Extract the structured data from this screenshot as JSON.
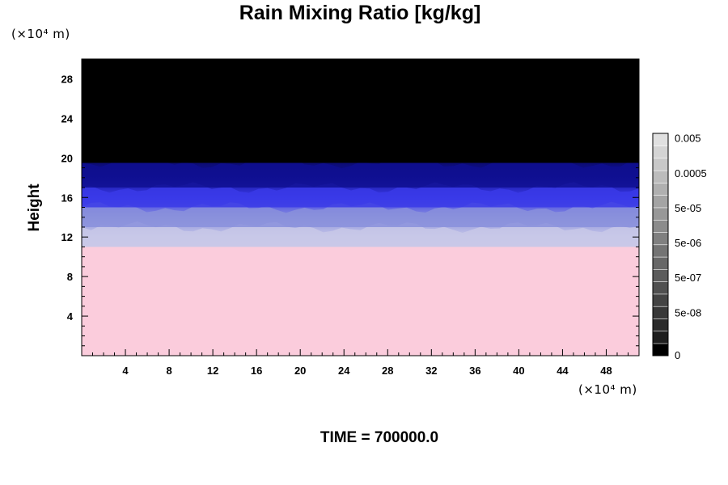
{
  "chart_data": {
    "type": "heatmap",
    "title": "Rain Mixing Ratio [kg/kg]",
    "ylabel": "Height",
    "x_unit_label": "(×10⁴ m)",
    "y_unit_label": "(×10⁴ m)",
    "footer": "TIME = 700000.0",
    "xlim": [
      0,
      51
    ],
    "ylim": [
      0,
      30
    ],
    "x_ticks": [
      "4",
      "8",
      "12",
      "16",
      "20",
      "24",
      "28",
      "32",
      "36",
      "40",
      "44",
      "48"
    ],
    "y_ticks": [
      "4",
      "8",
      "12",
      "16",
      "20",
      "24",
      "28"
    ],
    "colorbar": {
      "labels": [
        "0",
        "5e-08",
        "5e-07",
        "5e-06",
        "5e-05",
        "0.0005",
        "0.005"
      ],
      "colors": [
        "#000000",
        "#1e1e1e",
        "#2b2b2b",
        "#383838",
        "#444444",
        "#505050",
        "#5c5c5c",
        "#686868",
        "#747474",
        "#808080",
        "#8c8c8c",
        "#989898",
        "#a4a4a4",
        "#b0b0b0",
        "#bcbcbc",
        "#c8c8c8",
        "#d4d4d4",
        "#e0e0e0"
      ]
    },
    "layers": [
      {
        "name": "",
        "y_range": [
          0,
          11
        ],
        "color": "#fbccdc"
      },
      {
        "name": "",
        "y_range": [
          11,
          13
        ],
        "color": "#c8c8e8"
      },
      {
        "name": "",
        "y_range": [
          13,
          15
        ],
        "color": "#8a90dc"
      },
      {
        "name": "",
        "y_range": [
          15,
          17
        ],
        "color": "#3a3ae8"
      },
      {
        "name": "",
        "y_range": [
          17,
          19.5
        ],
        "color": "#0f0f90"
      },
      {
        "name": "",
        "y_range": [
          19.5,
          30
        ],
        "color": "#000000"
      }
    ]
  }
}
